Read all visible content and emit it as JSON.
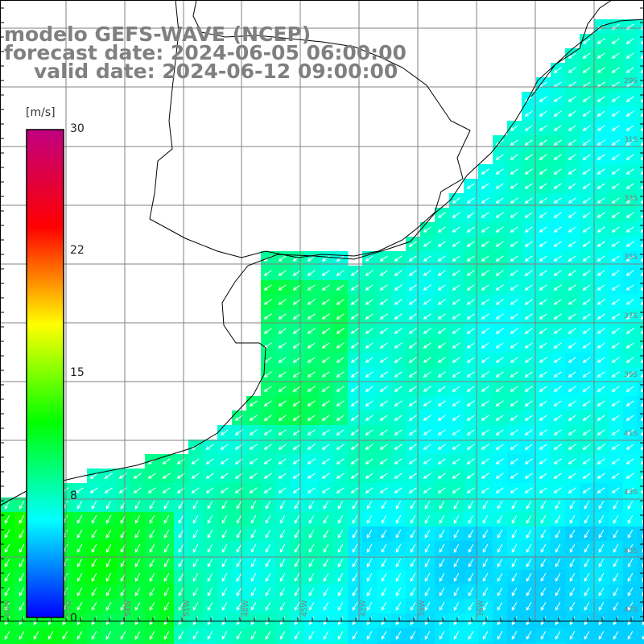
{
  "title": {
    "line1": "modelo GEFS-WAVE (NCEP)",
    "line2": "forecast date: 2024-06-05 06:00:00",
    "line3": "valid date: 2024-06-12 09:00:00"
  },
  "colorbar": {
    "unit": "[m/s]",
    "ticks": [
      {
        "value": 30,
        "label": "30"
      },
      {
        "value": 22,
        "label": "22"
      },
      {
        "value": 15,
        "label": "15"
      },
      {
        "value": 8,
        "label": "8"
      },
      {
        "value": 0,
        "label": "0"
      }
    ],
    "colors": [
      "#0000ff",
      "#00ffff",
      "#00ff00",
      "#ffff00",
      "#ff0000",
      "#c00080"
    ]
  },
  "map": {
    "ocean_wind_speed_range_ms": [
      7,
      13
    ],
    "wind_direction": "from north-east",
    "longitude_labels": [
      "60W",
      "57W",
      "54W",
      "51W",
      "48W",
      "45W",
      "42W",
      "39W",
      "36W"
    ],
    "latitude_labels": [
      "29S",
      "31S",
      "33S",
      "35S",
      "37S",
      "39S",
      "41S",
      "43S",
      "45S",
      "47S"
    ],
    "colors": {
      "land": "#ffffff",
      "coast": "#000000",
      "grid": "#808080",
      "arrow": "#ffffff"
    }
  }
}
